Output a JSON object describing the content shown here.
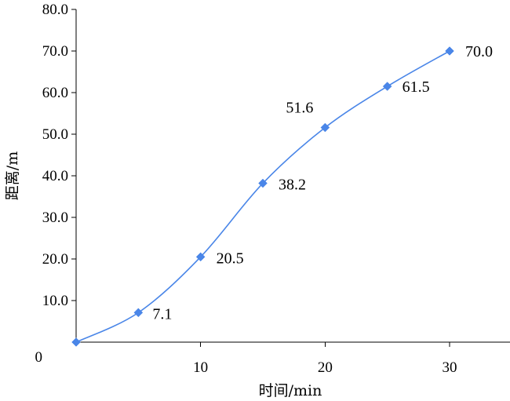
{
  "chart_data": {
    "type": "line",
    "title": "",
    "xlabel": "时间/min",
    "ylabel": "距离/m",
    "x": [
      0,
      5,
      10,
      15,
      20,
      25,
      30
    ],
    "series": [
      {
        "values": [
          0,
          7.1,
          20.5,
          38.2,
          51.6,
          61.5,
          70.0
        ],
        "labels": [
          "",
          "7.1",
          "20.5",
          "38.2",
          "51.6",
          "61.5",
          "70.0"
        ],
        "color": "#4a86e8",
        "marker": "diamond",
        "smooth": true
      }
    ],
    "xlim": [
      0,
      35
    ],
    "ylim": [
      0,
      80
    ],
    "x_ticks": [
      {
        "value": 10,
        "label": "10"
      },
      {
        "value": 20,
        "label": "20"
      },
      {
        "value": 30,
        "label": "30"
      }
    ],
    "y_ticks": [
      {
        "value": 0,
        "label": "0"
      },
      {
        "value": 10,
        "label": "10.0"
      },
      {
        "value": 20,
        "label": "20.0"
      },
      {
        "value": 30,
        "label": "30.0"
      },
      {
        "value": 40,
        "label": "40.0"
      },
      {
        "value": 50,
        "label": "50.0"
      },
      {
        "value": 60,
        "label": "60.0"
      },
      {
        "value": 70,
        "label": "70.0"
      },
      {
        "value": 80,
        "label": "80.0"
      }
    ],
    "grid": false,
    "legend": "none"
  }
}
